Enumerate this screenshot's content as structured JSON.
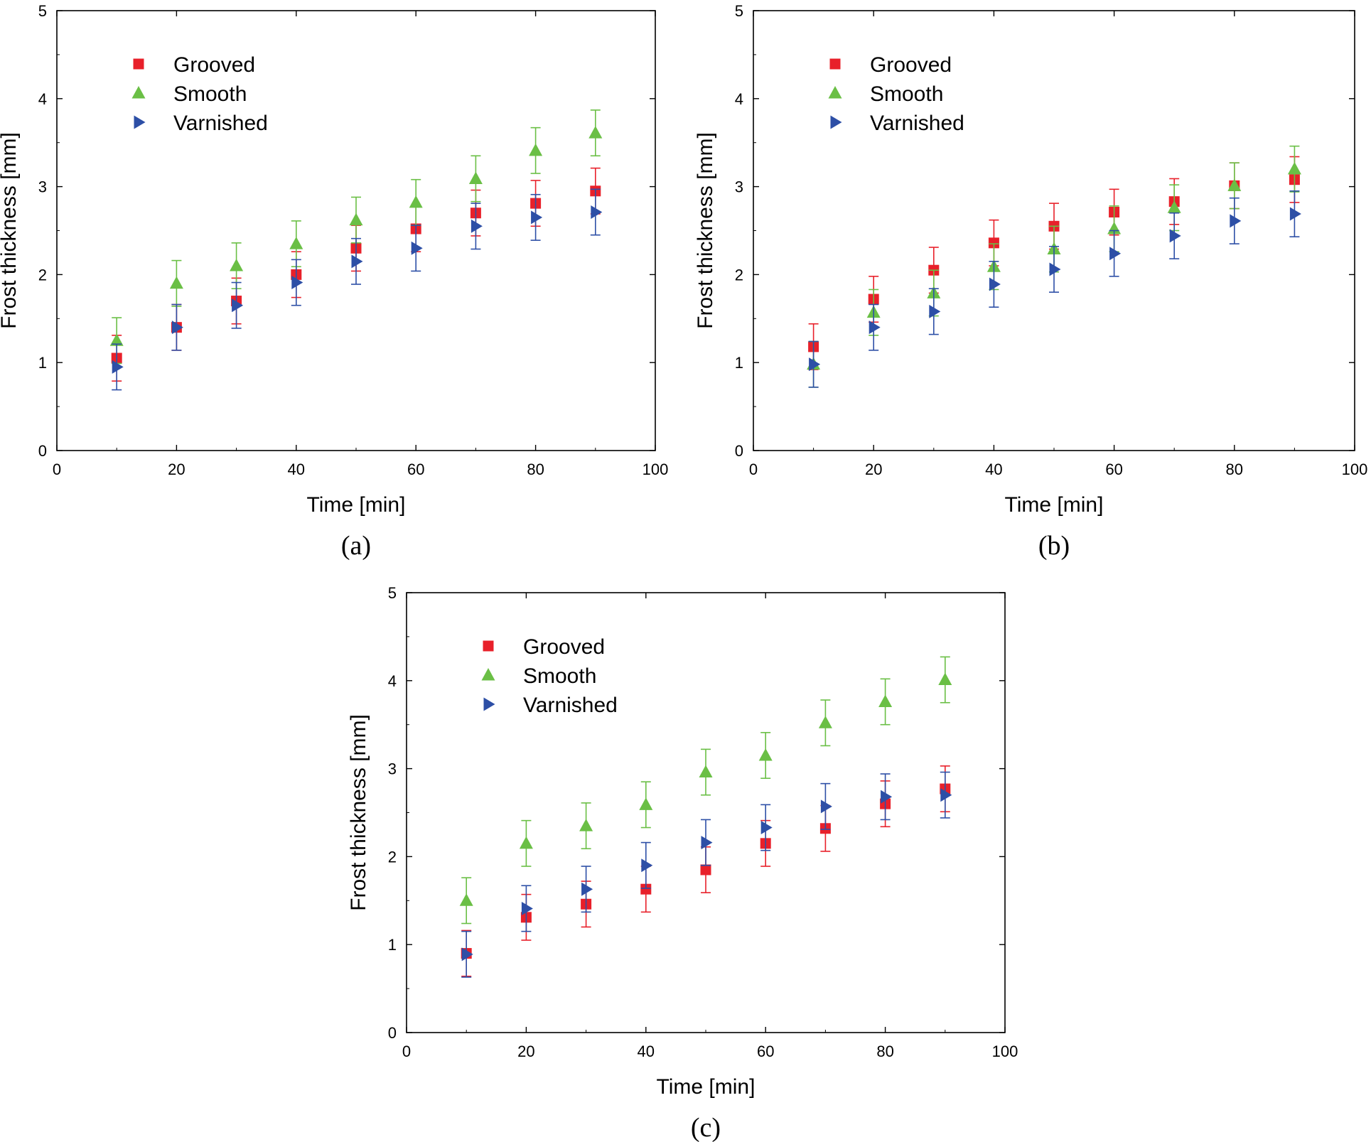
{
  "chart_data": [
    {
      "type": "scatter",
      "panel_label": "(a)",
      "xlabel": "Time [min]",
      "ylabel": "Frost thickness [mm]",
      "xlim": [
        0,
        100
      ],
      "ylim": [
        0,
        5
      ],
      "xticks": [
        0,
        20,
        40,
        60,
        80,
        100
      ],
      "yticks": [
        0,
        1,
        2,
        3,
        4,
        5
      ],
      "x": [
        10,
        20,
        30,
        40,
        50,
        60,
        70,
        80,
        90
      ],
      "legend_position": "top-left",
      "series": [
        {
          "name": "Grooved",
          "marker": "square",
          "color": "#e8202a",
          "values": [
            1.05,
            1.4,
            1.7,
            2.0,
            2.3,
            2.52,
            2.7,
            2.81,
            2.95
          ],
          "error": 0.26
        },
        {
          "name": "Smooth",
          "marker": "triangle-up",
          "color": "#6abf45",
          "values": [
            1.25,
            1.9,
            2.1,
            2.35,
            2.62,
            2.82,
            3.09,
            3.41,
            3.61
          ],
          "error": 0.26
        },
        {
          "name": "Varnished",
          "marker": "triangle-right",
          "color": "#2d4fa6",
          "values": [
            0.95,
            1.4,
            1.65,
            1.91,
            2.15,
            2.3,
            2.55,
            2.65,
            2.71
          ],
          "error": 0.26
        }
      ]
    },
    {
      "type": "scatter",
      "panel_label": "(b)",
      "xlabel": "Time [min]",
      "ylabel": "Frost thickness [mm]",
      "xlim": [
        0,
        100
      ],
      "ylim": [
        0,
        5
      ],
      "xticks": [
        0,
        20,
        40,
        60,
        80,
        100
      ],
      "yticks": [
        0,
        1,
        2,
        3,
        4,
        5
      ],
      "x": [
        10,
        20,
        30,
        40,
        50,
        60,
        70,
        80,
        90
      ],
      "legend_position": "top-left",
      "series": [
        {
          "name": "Grooved",
          "marker": "square",
          "color": "#e8202a",
          "values": [
            1.18,
            1.72,
            2.05,
            2.36,
            2.55,
            2.71,
            2.83,
            3.01,
            3.08
          ],
          "error": 0.26
        },
        {
          "name": "Smooth",
          "marker": "triangle-up",
          "color": "#6abf45",
          "values": [
            0.98,
            1.57,
            1.79,
            2.09,
            2.29,
            2.52,
            2.76,
            3.01,
            3.2
          ],
          "error": 0.26
        },
        {
          "name": "Varnished",
          "marker": "triangle-right",
          "color": "#2d4fa6",
          "values": [
            0.98,
            1.4,
            1.58,
            1.89,
            2.06,
            2.24,
            2.44,
            2.61,
            2.69
          ],
          "error": 0.26
        }
      ]
    },
    {
      "type": "scatter",
      "panel_label": "(c)",
      "xlabel": "Time [min]",
      "ylabel": "Frost thickness [mm]",
      "xlim": [
        0,
        100
      ],
      "ylim": [
        0,
        5
      ],
      "xticks": [
        0,
        20,
        40,
        60,
        80,
        100
      ],
      "yticks": [
        0,
        1,
        2,
        3,
        4,
        5
      ],
      "x": [
        10,
        20,
        30,
        40,
        50,
        60,
        70,
        80,
        90
      ],
      "legend_position": "top-left",
      "series": [
        {
          "name": "Grooved",
          "marker": "square",
          "color": "#e8202a",
          "values": [
            0.9,
            1.31,
            1.46,
            1.63,
            1.85,
            2.15,
            2.32,
            2.6,
            2.77
          ],
          "error": 0.26
        },
        {
          "name": "Smooth",
          "marker": "triangle-up",
          "color": "#6abf45",
          "values": [
            1.5,
            2.15,
            2.35,
            2.59,
            2.96,
            3.15,
            3.52,
            3.76,
            4.01
          ],
          "error": 0.26
        },
        {
          "name": "Varnished",
          "marker": "triangle-right",
          "color": "#2d4fa6",
          "values": [
            0.89,
            1.41,
            1.63,
            1.9,
            2.16,
            2.33,
            2.57,
            2.68,
            2.7
          ],
          "error": 0.26
        }
      ]
    }
  ]
}
